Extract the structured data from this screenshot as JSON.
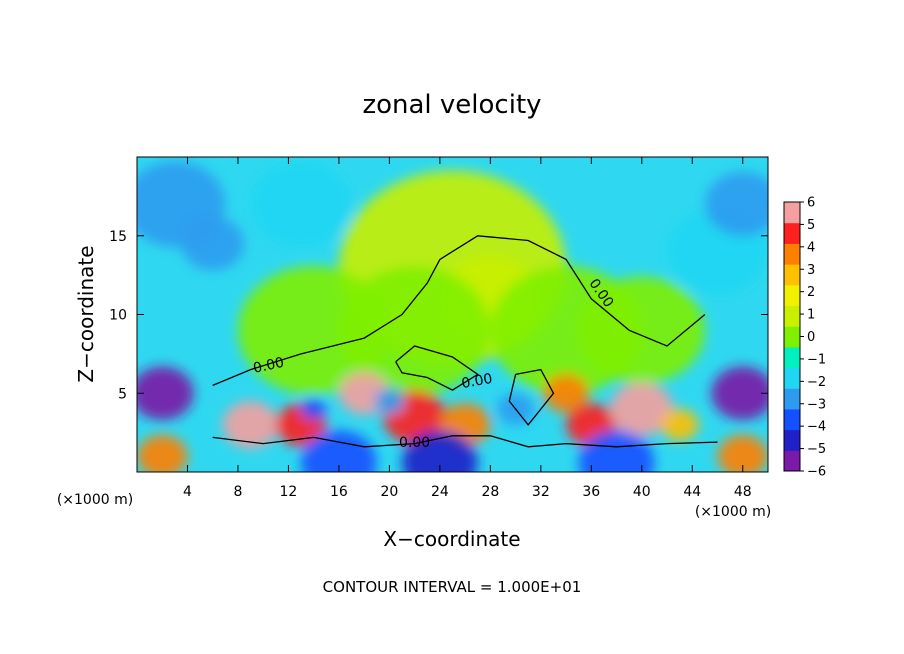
{
  "chart_data": {
    "type": "heatmap",
    "title": "zonal velocity",
    "xlabel": "X−coordinate",
    "ylabel": "Z−coordinate",
    "x_unit": "(×1000 m)",
    "y_unit": "(×1000 m)",
    "xlim": [
      0,
      50
    ],
    "ylim": [
      0,
      20
    ],
    "x_ticks": [
      4,
      8,
      12,
      16,
      20,
      24,
      28,
      32,
      36,
      40,
      44,
      48
    ],
    "y_ticks": [
      5,
      10,
      15
    ],
    "colorbar": {
      "min": -6,
      "max": 6,
      "ticks": [
        6,
        5,
        4,
        3,
        2,
        1,
        0,
        -1,
        -2,
        -3,
        -4,
        -5,
        -6
      ],
      "tick_labels": [
        "6",
        "5",
        "4",
        "3",
        "2",
        "1",
        "0",
        "−1",
        "−2",
        "−3",
        "−4",
        "−5",
        "−6"
      ],
      "colors": [
        "#7a1aa6",
        "#2020c8",
        "#1450ff",
        "#2f9bf0",
        "#20d6f2",
        "#00f0c0",
        "#7ef000",
        "#c8f000",
        "#f0f000",
        "#ffc000",
        "#ff8000",
        "#ff2020",
        "#f5a0a0"
      ]
    },
    "contour_labels": [
      "0.00",
      "0.00",
      "0.00",
      "0.00"
    ],
    "contour_interval_text": "CONTOUR INTERVAL = 1.000E+01",
    "background_color": "#2fd8f0",
    "blobs": [
      {
        "x": 25,
        "y": 13,
        "r": 9,
        "v": 0.5
      },
      {
        "x": 28,
        "y": 11,
        "r": 4,
        "v": 1.2
      },
      {
        "x": 22,
        "y": 9,
        "r": 6,
        "v": 0.4
      },
      {
        "x": 34,
        "y": 9,
        "r": 6,
        "v": 0.3
      },
      {
        "x": 14,
        "y": 9,
        "r": 6,
        "v": -0.2
      },
      {
        "x": 40,
        "y": 9,
        "r": 5,
        "v": 0
      },
      {
        "x": 6,
        "y": 14.5,
        "r": 2.5,
        "v": -3.4
      },
      {
        "x": 3,
        "y": 17,
        "r": 4,
        "v": -2.8
      },
      {
        "x": 13,
        "y": 17,
        "r": 4,
        "v": -2.5
      },
      {
        "x": 46,
        "y": 14,
        "r": 4,
        "v": -2.2
      },
      {
        "x": 48,
        "y": 17,
        "r": 3,
        "v": -2.6
      },
      {
        "x": 9,
        "y": 3,
        "r": 2.2,
        "v": 6
      },
      {
        "x": 13,
        "y": 3,
        "r": 2,
        "v": 5
      },
      {
        "x": 18,
        "y": 5,
        "r": 2,
        "v": 5.5
      },
      {
        "x": 22,
        "y": 3.5,
        "r": 2.5,
        "v": 5
      },
      {
        "x": 26,
        "y": 3,
        "r": 2,
        "v": 4
      },
      {
        "x": 34,
        "y": 5,
        "r": 1.8,
        "v": 3.5
      },
      {
        "x": 36,
        "y": 3,
        "r": 2,
        "v": 5
      },
      {
        "x": 40,
        "y": 4,
        "r": 2.5,
        "v": 6
      },
      {
        "x": 43,
        "y": 3,
        "r": 1.5,
        "v": 3
      },
      {
        "x": 30,
        "y": 4,
        "r": 1.5,
        "v": -3.5
      },
      {
        "x": 14,
        "y": 4,
        "r": 1,
        "v": -4
      },
      {
        "x": 20,
        "y": 4.5,
        "r": 1.2,
        "v": -3
      },
      {
        "x": 2,
        "y": 5,
        "r": 2.5,
        "v": -6
      },
      {
        "x": 48,
        "y": 5,
        "r": 2.5,
        "v": -6
      },
      {
        "x": 2,
        "y": 1,
        "r": 2,
        "v": 4
      },
      {
        "x": 48,
        "y": 1,
        "r": 2,
        "v": 4
      },
      {
        "x": 24,
        "y": 0.6,
        "r": 3,
        "v": -5
      },
      {
        "x": 16,
        "y": 0.6,
        "r": 3,
        "v": -4
      },
      {
        "x": 38,
        "y": 0.6,
        "r": 3,
        "v": -4
      }
    ],
    "contours": [
      {
        "style": "solid",
        "points": [
          [
            6,
            5.5
          ],
          [
            9,
            6.5
          ],
          [
            13,
            7.5
          ],
          [
            18,
            8.5
          ],
          [
            21,
            10
          ],
          [
            23,
            12
          ],
          [
            24,
            13.5
          ],
          [
            27,
            15
          ],
          [
            31,
            14.7
          ],
          [
            34,
            13.5
          ],
          [
            36,
            11
          ],
          [
            39,
            9
          ],
          [
            42,
            8
          ],
          [
            45,
            10
          ]
        ]
      },
      {
        "style": "solid",
        "points": [
          [
            6,
            2.2
          ],
          [
            10,
            1.8
          ],
          [
            14,
            2.2
          ],
          [
            18,
            1.6
          ],
          [
            22,
            1.8
          ],
          [
            25,
            2.3
          ],
          [
            28,
            2.3
          ],
          [
            31,
            1.6
          ],
          [
            34,
            1.8
          ],
          [
            38,
            1.6
          ],
          [
            42,
            1.8
          ],
          [
            46,
            1.9
          ]
        ]
      },
      {
        "style": "solid",
        "points": [
          [
            20.5,
            7
          ],
          [
            22,
            8
          ],
          [
            25,
            7.3
          ],
          [
            27,
            6.2
          ],
          [
            25,
            5.2
          ],
          [
            23,
            6
          ],
          [
            21,
            6.3
          ],
          [
            20.5,
            7
          ]
        ]
      },
      {
        "style": "solid",
        "points": [
          [
            30,
            6.2
          ],
          [
            32,
            6.5
          ],
          [
            33,
            5
          ],
          [
            31,
            3
          ],
          [
            29.5,
            4.5
          ],
          [
            30,
            6.2
          ]
        ]
      }
    ]
  }
}
